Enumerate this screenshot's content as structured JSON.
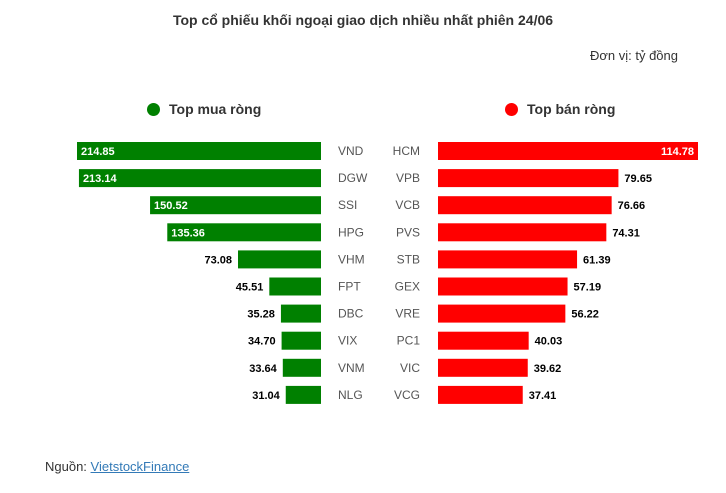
{
  "chart_data": {
    "type": "bar",
    "title": "Top cổ phiếu khối ngoại giao dịch nhiều nhất phiên 24/06",
    "unit_label": "Đơn vị: tỷ đồng",
    "source_prefix": "Nguồn: ",
    "source_link": "VietstockFinance",
    "colors": {
      "buy": "#008000",
      "sell": "#ff0000"
    },
    "buy": {
      "name": "Top mua ròng",
      "categories": [
        "VND",
        "DGW",
        "SSI",
        "HPG",
        "VHM",
        "FPT",
        "DBC",
        "VIX",
        "VNM",
        "NLG"
      ],
      "values": [
        214.85,
        213.14,
        150.52,
        135.36,
        73.08,
        45.51,
        35.28,
        34.7,
        33.64,
        31.04
      ],
      "labels": [
        "214.85",
        "213.14",
        "150.52",
        "135.36",
        "73.08",
        "45.51",
        "35.28",
        "34.70",
        "33.64",
        "31.04"
      ]
    },
    "sell": {
      "name": "Top bán ròng",
      "categories": [
        "HCM",
        "VPB",
        "VCB",
        "PVS",
        "STB",
        "GEX",
        "VRE",
        "PC1",
        "VIC",
        "VCG"
      ],
      "values": [
        114.78,
        79.65,
        76.66,
        74.31,
        61.39,
        57.19,
        56.22,
        40.03,
        39.62,
        37.41
      ],
      "labels": [
        "114.78",
        "79.65",
        "76.66",
        "74.31",
        "61.39",
        "57.19",
        "56.22",
        "40.03",
        "39.62",
        "37.41"
      ]
    }
  }
}
